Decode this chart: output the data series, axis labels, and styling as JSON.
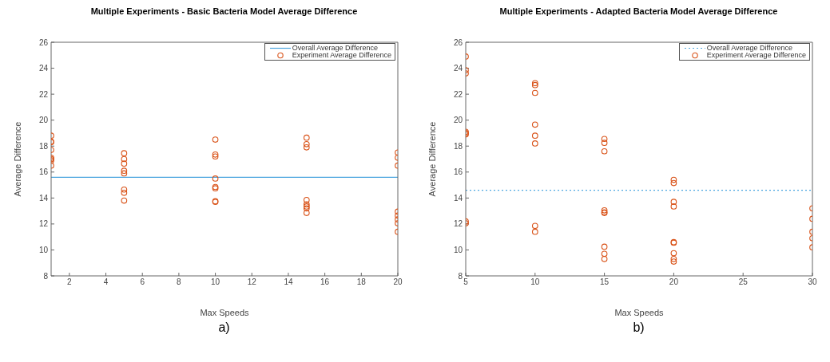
{
  "chart_data": [
    {
      "type": "scatter",
      "title": "Multiple Experiments - Basic Bacteria Model Average Difference",
      "xlabel": "Max Speeds",
      "ylabel": "Average Difference",
      "annotations": [
        "a)"
      ],
      "xlim": [
        1,
        20
      ],
      "xticks": [
        2,
        4,
        6,
        8,
        10,
        12,
        14,
        16,
        18,
        20
      ],
      "ylim": [
        8,
        26
      ],
      "yticks": [
        8,
        10,
        12,
        14,
        16,
        18,
        20,
        22,
        24,
        26
      ],
      "series": [
        {
          "name": "Experiment Average Difference",
          "color": "#d95319",
          "x": [
            1,
            1,
            1,
            1,
            1,
            1,
            1,
            1,
            5,
            5,
            5,
            5,
            5,
            5,
            5,
            5,
            10,
            10,
            10,
            10,
            10,
            10,
            10,
            10,
            15,
            15,
            15,
            15,
            15,
            15,
            15,
            15,
            20,
            20,
            20,
            20,
            20,
            20,
            20,
            20
          ],
          "values": [
            18.8,
            18.35,
            18.3,
            17.7,
            17.1,
            17.0,
            16.9,
            16.5,
            17.45,
            17.0,
            16.65,
            16.1,
            15.9,
            14.65,
            14.4,
            13.8,
            18.5,
            17.35,
            17.2,
            15.5,
            14.85,
            14.75,
            13.75,
            13.7,
            18.65,
            18.15,
            17.9,
            13.85,
            13.5,
            13.35,
            13.2,
            12.85,
            17.5,
            17.1,
            16.5,
            12.95,
            12.65,
            12.35,
            12.05,
            11.4
          ]
        }
      ],
      "ref_lines": [
        {
          "axis": "y",
          "value": 15.6,
          "label": "Overall Average Difference",
          "color": "#4da6e0",
          "line_style": "solid"
        }
      ],
      "marker": "circle",
      "legend": "top right",
      "grid": false
    },
    {
      "type": "scatter",
      "title": "Multiple Experiments - Adapted Bacteria Model Average Difference",
      "xlabel": "Max Speeds",
      "ylabel": "Average Difference",
      "annotations": [
        "b)"
      ],
      "xlim": [
        5,
        30
      ],
      "xticks": [
        5,
        10,
        15,
        20,
        25,
        30
      ],
      "ylim": [
        8,
        26
      ],
      "yticks": [
        8,
        10,
        12,
        14,
        16,
        18,
        20,
        22,
        24,
        26
      ],
      "series": [
        {
          "name": "Experiment Average Difference",
          "color": "#d95319",
          "x": [
            5,
            5,
            5,
            5,
            5,
            5,
            5,
            5,
            10,
            10,
            10,
            10,
            10,
            10,
            10,
            10,
            15,
            15,
            15,
            15,
            15,
            15,
            15,
            15,
            15,
            20,
            20,
            20,
            20,
            20,
            20,
            20,
            20,
            20,
            30,
            30,
            30,
            30,
            30
          ],
          "values": [
            24.9,
            23.85,
            23.6,
            19.1,
            19.0,
            18.9,
            12.2,
            12.05,
            22.85,
            22.7,
            22.1,
            19.65,
            18.8,
            18.2,
            11.85,
            11.4,
            18.55,
            18.25,
            17.6,
            13.05,
            12.9,
            12.85,
            10.25,
            9.7,
            9.3,
            15.4,
            15.15,
            13.7,
            13.35,
            10.6,
            10.55,
            9.75,
            9.3,
            9.1,
            13.2,
            12.4,
            11.4,
            10.9,
            10.2
          ]
        }
      ],
      "ref_lines": [
        {
          "axis": "y",
          "value": 14.6,
          "label": "Overall Average Difference",
          "color": "#4da6e0",
          "line_style": "dotted"
        }
      ],
      "marker": "circle",
      "legend": "top right",
      "grid": false
    }
  ]
}
